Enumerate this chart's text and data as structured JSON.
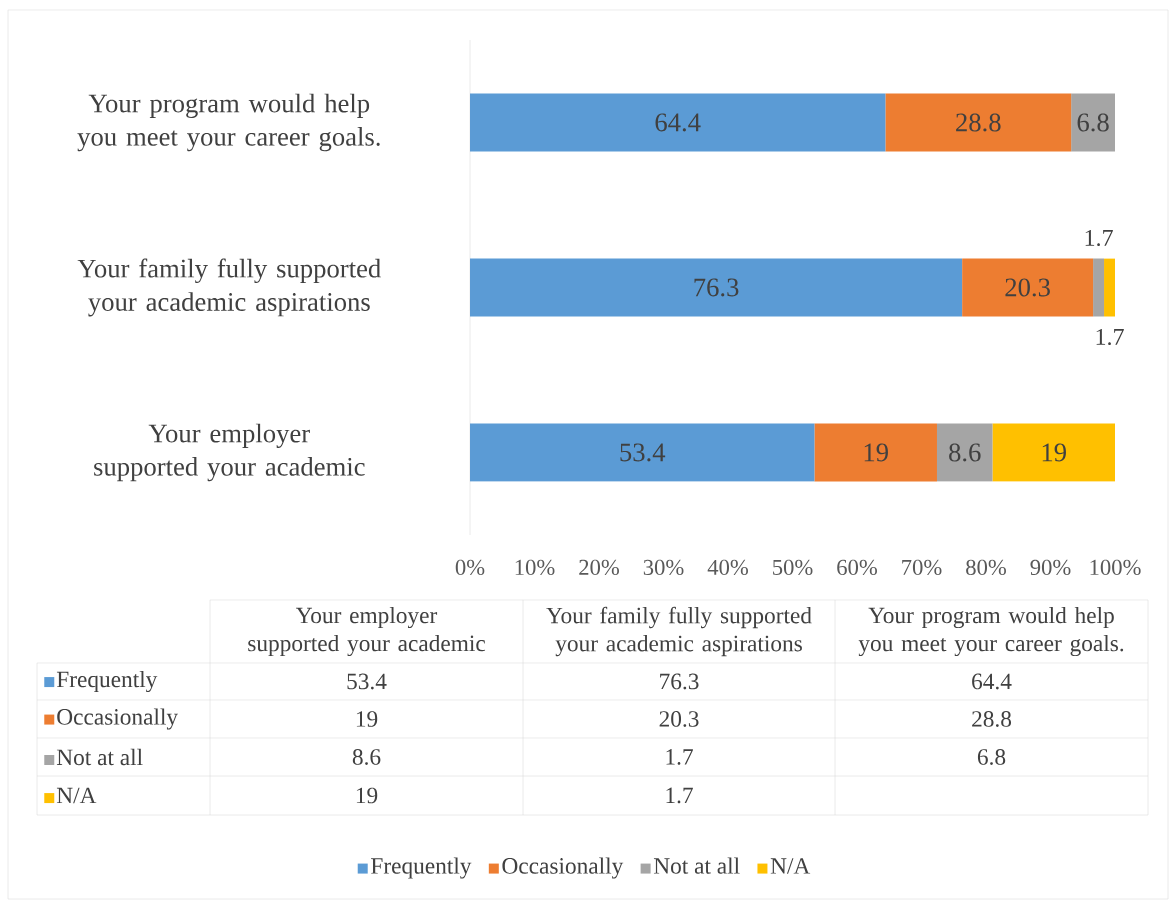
{
  "chart_data": {
    "type": "bar",
    "orientation": "horizontal",
    "stacked": true,
    "categories": [
      "Your program would help you meet your career goals.",
      "Your family fully supported your academic aspirations",
      "Your employer supported your academic"
    ],
    "series": [
      {
        "name": "Frequently",
        "color": "#5b9bd5",
        "values": [
          64.4,
          76.3,
          53.4
        ]
      },
      {
        "name": "Occasionally",
        "color": "#ed7d31",
        "values": [
          28.8,
          20.3,
          19
        ]
      },
      {
        "name": "Not at all",
        "color": "#a5a5a5",
        "values": [
          6.8,
          1.7,
          8.6
        ]
      },
      {
        "name": "N/A",
        "color": "#ffc000",
        "values": [
          null,
          1.7,
          19
        ]
      }
    ],
    "annotations": [
      "53.4",
      "76.3",
      "64.4",
      "19",
      "20.3",
      "28.8",
      "8.6",
      "1.7",
      "6.8",
      "19",
      "1.7"
    ],
    "xlim": [
      0,
      100
    ],
    "xticks": [
      {
        "value": 0,
        "label": "0%"
      },
      {
        "value": 10,
        "label": "10%"
      },
      {
        "value": 20,
        "label": "20%"
      },
      {
        "value": 30,
        "label": "30%"
      },
      {
        "value": 40,
        "label": "40%"
      },
      {
        "value": 50,
        "label": "50%"
      },
      {
        "value": 60,
        "label": "60%"
      },
      {
        "value": 70,
        "label": "70%"
      },
      {
        "value": 80,
        "label": "80%"
      },
      {
        "value": 90,
        "label": "90%"
      },
      {
        "value": 100,
        "label": "100%"
      }
    ],
    "data_labels": true,
    "legend": "bottom"
  }
}
